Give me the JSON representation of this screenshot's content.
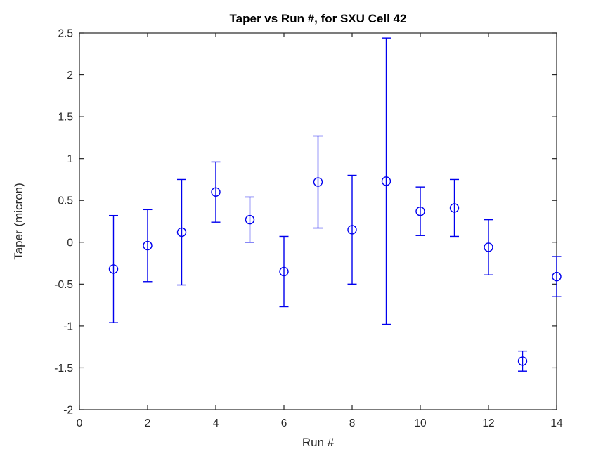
{
  "figure": {
    "background_color": "#ffffff",
    "axis_color": "#262626",
    "tick_label_color": "#262626",
    "title_color": "#000000"
  },
  "chart_data": {
    "type": "scatter",
    "subtype": "errorbar",
    "title": "Taper vs Run #, for SXU Cell 42",
    "xlabel": "Run #",
    "ylabel": "Taper (micron)",
    "xlim": [
      0,
      14
    ],
    "ylim": [
      -2,
      2.5
    ],
    "xticks": [
      0,
      2,
      4,
      6,
      8,
      10,
      12,
      14
    ],
    "xtick_labels": [
      "0",
      "2",
      "4",
      "6",
      "8",
      "10",
      "12",
      "14"
    ],
    "yticks": [
      -2,
      -1.5,
      -1,
      -0.5,
      0,
      0.5,
      1,
      1.5,
      2,
      2.5
    ],
    "ytick_labels": [
      "-2",
      "-1.5",
      "-1",
      "-0.5",
      "0",
      "0.5",
      "1",
      "1.5",
      "2",
      "2.5"
    ],
    "grid": false,
    "box": true,
    "tick_direction": "in",
    "legend": null,
    "marker": "circle",
    "marker_color": "#0000EE",
    "x": [
      1,
      2,
      3,
      4,
      5,
      6,
      7,
      8,
      9,
      10,
      11,
      12,
      13,
      14
    ],
    "y": [
      -0.32,
      -0.04,
      0.12,
      0.6,
      0.27,
      -0.35,
      0.72,
      0.15,
      0.73,
      0.37,
      0.41,
      -0.06,
      -1.42,
      -0.41
    ],
    "yerr": [
      0.64,
      0.43,
      0.63,
      0.36,
      0.27,
      0.42,
      0.55,
      0.65,
      1.71,
      0.29,
      0.34,
      0.33,
      0.12,
      0.24
    ]
  }
}
